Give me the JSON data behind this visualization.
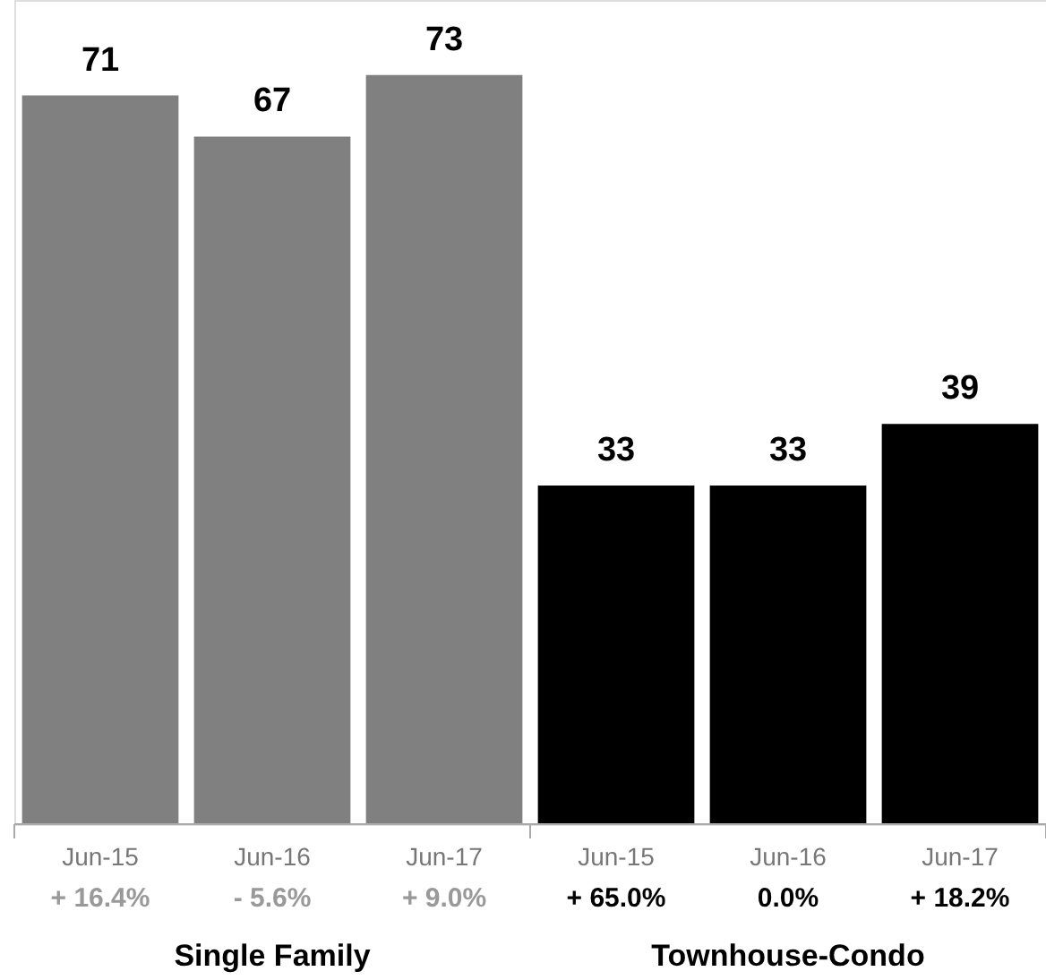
{
  "chart_data": {
    "type": "bar",
    "categories": [
      "Jun-15",
      "Jun-16",
      "Jun-17",
      "Jun-15",
      "Jun-16",
      "Jun-17"
    ],
    "values": [
      71,
      67,
      73,
      33,
      33,
      39
    ],
    "colors": [
      "#808080",
      "#808080",
      "#808080",
      "#000000",
      "#000000",
      "#000000"
    ],
    "data_labels": true,
    "annotations": [
      "+ 16.4%",
      "- 5.6%",
      "+ 9.0%",
      "+ 65.0%",
      "0.0%",
      "+ 18.2%",
      "Single Family",
      "Townhouse-Condo"
    ]
  }
}
